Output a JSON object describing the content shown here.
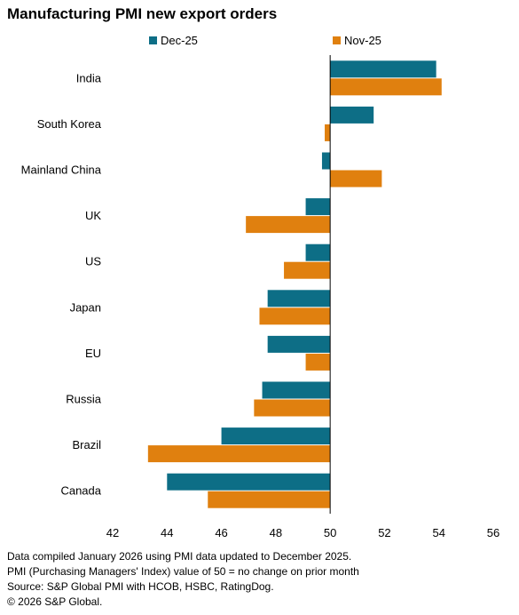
{
  "title": "Manufacturing PMI new export orders",
  "chart_data": {
    "type": "bar",
    "orientation": "horizontal",
    "categories": [
      "India",
      "South Korea",
      "Mainland China",
      "UK",
      "US",
      "Japan",
      "EU",
      "Russia",
      "Brazil",
      "Canada"
    ],
    "series": [
      {
        "name": "Dec-25",
        "color": "#0d6e86",
        "values": [
          53.9,
          51.6,
          49.7,
          49.1,
          49.1,
          47.7,
          47.7,
          47.5,
          46.0,
          44.0
        ]
      },
      {
        "name": "Nov-25",
        "color": "#e0800f",
        "values": [
          54.1,
          49.8,
          51.9,
          46.9,
          48.3,
          47.4,
          49.1,
          47.2,
          43.3,
          45.5
        ]
      }
    ],
    "baseline": 50,
    "xlim": [
      42,
      56
    ],
    "xticks": [
      "42",
      "44",
      "46",
      "48",
      "50",
      "52",
      "54",
      "56"
    ],
    "legend_position": "top",
    "grid": false
  },
  "notes": [
    "Data compiled January 2026 using PMI data updated to December 2025.",
    "PMI (Purchasing Managers' Index) value of 50 = no change on prior month",
    "Source: S&P Global PMI with HCOB, HSBC, RatingDog.",
    "© 2026 S&P Global."
  ]
}
